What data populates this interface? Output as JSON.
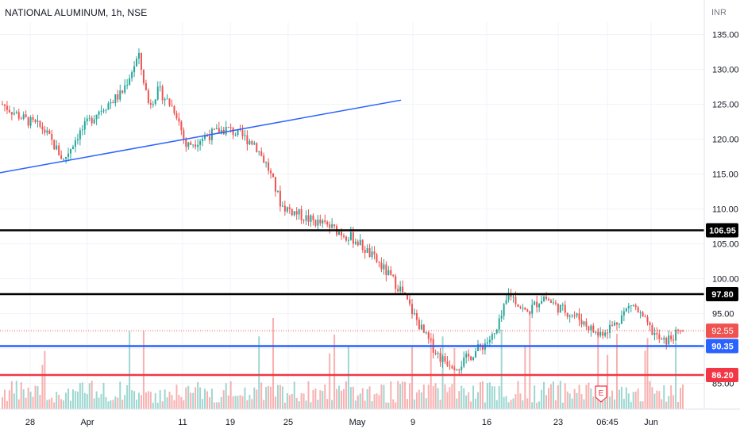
{
  "header": {
    "title": "NATIONAL ALUMINUM, 1h, NSE",
    "currency": "INR"
  },
  "colors": {
    "up": "#26a69a",
    "down": "#ef5350",
    "trendline": "#2962ff",
    "support_blue": "#2962ff",
    "support_red": "#f23645",
    "resistance": "#000000",
    "grid": "#f0f3fa",
    "axis_text": "#131722"
  },
  "chart_data": {
    "type": "candlestick",
    "symbol": "NATIONAL ALUMINUM",
    "interval": "1h",
    "exchange": "NSE",
    "ylim": [
      82,
      142
    ],
    "y_ticks": [
      "135.00",
      "130.00",
      "125.00",
      "120.00",
      "115.00",
      "110.00",
      "105.00",
      "100.00",
      "95.00",
      "90.00",
      "85.00"
    ],
    "x_ticks": [
      "28",
      "Apr",
      "11",
      "19",
      "25",
      "May",
      "9",
      "16",
      "23",
      "06:45",
      "Jun"
    ],
    "horizontal_levels": [
      {
        "value": 106.95,
        "label": "106.95",
        "color": "#000000"
      },
      {
        "value": 97.8,
        "label": "97.80",
        "color": "#000000"
      },
      {
        "value": 90.35,
        "label": "90.35",
        "color": "#2962ff"
      },
      {
        "value": 86.2,
        "label": "86.20",
        "color": "#f23645"
      }
    ],
    "last_price": {
      "value": 92.55,
      "label": "92.55"
    },
    "earnings_marker": "E",
    "trendline": {
      "from_price": 115.2,
      "to_price": 125.6
    },
    "close_path": [
      {
        "t": 0,
        "p": 125
      },
      {
        "t": 0.03,
        "p": 123
      },
      {
        "t": 0.06,
        "p": 121.5
      },
      {
        "t": 0.09,
        "p": 117
      },
      {
        "t": 0.11,
        "p": 120.5
      },
      {
        "t": 0.14,
        "p": 124
      },
      {
        "t": 0.175,
        "p": 126.5
      },
      {
        "t": 0.2,
        "p": 132
      },
      {
        "t": 0.215,
        "p": 125
      },
      {
        "t": 0.23,
        "p": 127
      },
      {
        "t": 0.255,
        "p": 124
      },
      {
        "t": 0.27,
        "p": 119
      },
      {
        "t": 0.3,
        "p": 120.5
      },
      {
        "t": 0.33,
        "p": 121.5
      },
      {
        "t": 0.37,
        "p": 119.5
      },
      {
        "t": 0.39,
        "p": 116
      },
      {
        "t": 0.41,
        "p": 110.5
      },
      {
        "t": 0.45,
        "p": 108.5
      },
      {
        "t": 0.48,
        "p": 107.5
      },
      {
        "t": 0.52,
        "p": 105.5
      },
      {
        "t": 0.555,
        "p": 102
      },
      {
        "t": 0.585,
        "p": 98.5
      },
      {
        "t": 0.62,
        "p": 92
      },
      {
        "t": 0.645,
        "p": 88.5
      },
      {
        "t": 0.67,
        "p": 87.5
      },
      {
        "t": 0.7,
        "p": 90
      },
      {
        "t": 0.725,
        "p": 92
      },
      {
        "t": 0.745,
        "p": 98
      },
      {
        "t": 0.77,
        "p": 95
      },
      {
        "t": 0.795,
        "p": 97.5
      },
      {
        "t": 0.815,
        "p": 96
      },
      {
        "t": 0.845,
        "p": 94.5
      },
      {
        "t": 0.875,
        "p": 92
      },
      {
        "t": 0.9,
        "p": 93.5
      },
      {
        "t": 0.925,
        "p": 96.5
      },
      {
        "t": 0.95,
        "p": 93
      },
      {
        "t": 0.97,
        "p": 90.8
      },
      {
        "t": 1.0,
        "p": 92.55
      }
    ]
  }
}
